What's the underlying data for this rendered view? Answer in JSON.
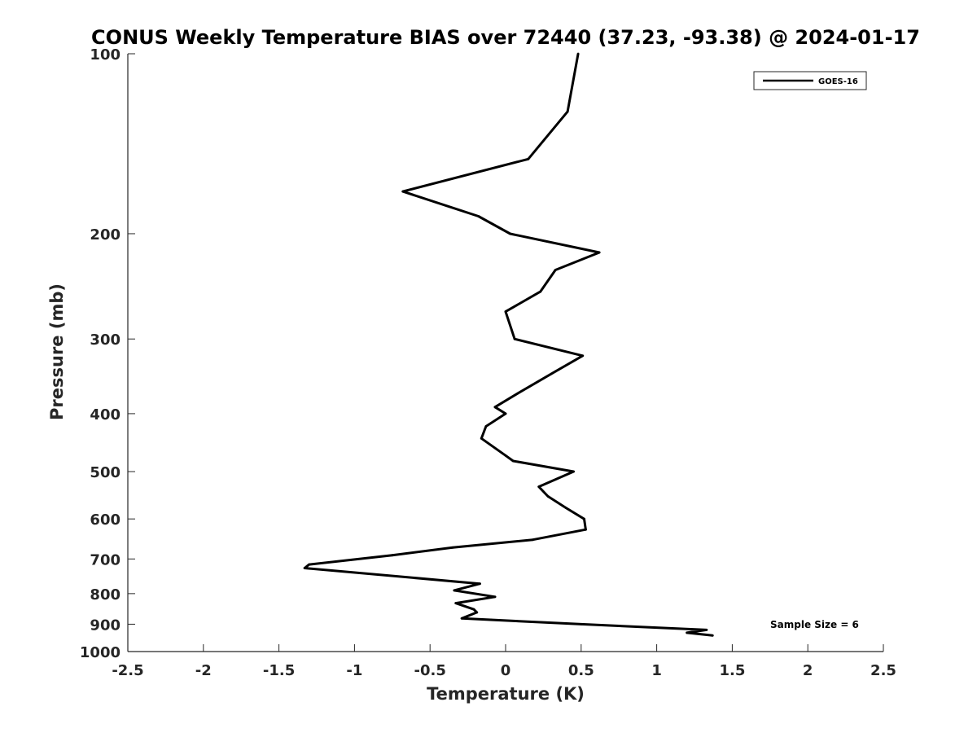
{
  "chart_data": {
    "type": "line",
    "title": "CONUS Weekly Temperature BIAS over 72440 (37.23, -93.38) @ 2024-01-17",
    "xlabel": "Temperature (K)",
    "ylabel": "Pressure (mb)",
    "xlim": [
      -2.5,
      2.5
    ],
    "ylim": [
      1000,
      100
    ],
    "y_scale": "log",
    "y_reversed": true,
    "x_ticks": [
      -2.5,
      -2,
      -1.5,
      -1,
      -0.5,
      0,
      0.5,
      1,
      1.5,
      2,
      2.5
    ],
    "x_tick_labels": [
      "-2.5",
      "-2",
      "-1.5",
      "-1",
      "-0.5",
      "0",
      "0.5",
      "1",
      "1.5",
      "2",
      "2.5"
    ],
    "y_ticks": [
      100,
      200,
      300,
      400,
      500,
      600,
      700,
      800,
      900,
      1000
    ],
    "y_tick_labels": [
      "100",
      "200",
      "300",
      "400",
      "500",
      "600",
      "700",
      "800",
      "900",
      "1000"
    ],
    "grid": false,
    "legend_position": "top-right",
    "annotation": "Sample Size = 6",
    "series": [
      {
        "name": "GOES-16",
        "color": "#000000",
        "points": [
          [
            0.48,
            100
          ],
          [
            0.41,
            125
          ],
          [
            0.15,
            150
          ],
          [
            -0.68,
            170
          ],
          [
            -0.18,
            187
          ],
          [
            0.03,
            200
          ],
          [
            0.62,
            215
          ],
          [
            0.33,
            230
          ],
          [
            0.23,
            250
          ],
          [
            0.0,
            270
          ],
          [
            0.06,
            300
          ],
          [
            0.51,
            320
          ],
          [
            0.33,
            340
          ],
          [
            0.08,
            370
          ],
          [
            -0.07,
            390
          ],
          [
            0.0,
            400
          ],
          [
            -0.13,
            420
          ],
          [
            -0.16,
            440
          ],
          [
            0.0,
            470
          ],
          [
            0.05,
            480
          ],
          [
            0.45,
            500
          ],
          [
            0.22,
            530
          ],
          [
            0.28,
            550
          ],
          [
            0.4,
            575
          ],
          [
            0.52,
            600
          ],
          [
            0.53,
            625
          ],
          [
            0.18,
            650
          ],
          [
            -0.35,
            670
          ],
          [
            -0.75,
            690
          ],
          [
            -1.3,
            715
          ],
          [
            -1.33,
            725
          ],
          [
            -0.17,
            770
          ],
          [
            -0.34,
            790
          ],
          [
            -0.07,
            810
          ],
          [
            -0.33,
            830
          ],
          [
            -0.21,
            850
          ],
          [
            -0.19,
            860
          ],
          [
            -0.29,
            880
          ],
          [
            0.5,
            900
          ],
          [
            1.33,
            920
          ],
          [
            1.2,
            930
          ],
          [
            1.37,
            940
          ]
        ]
      }
    ]
  }
}
